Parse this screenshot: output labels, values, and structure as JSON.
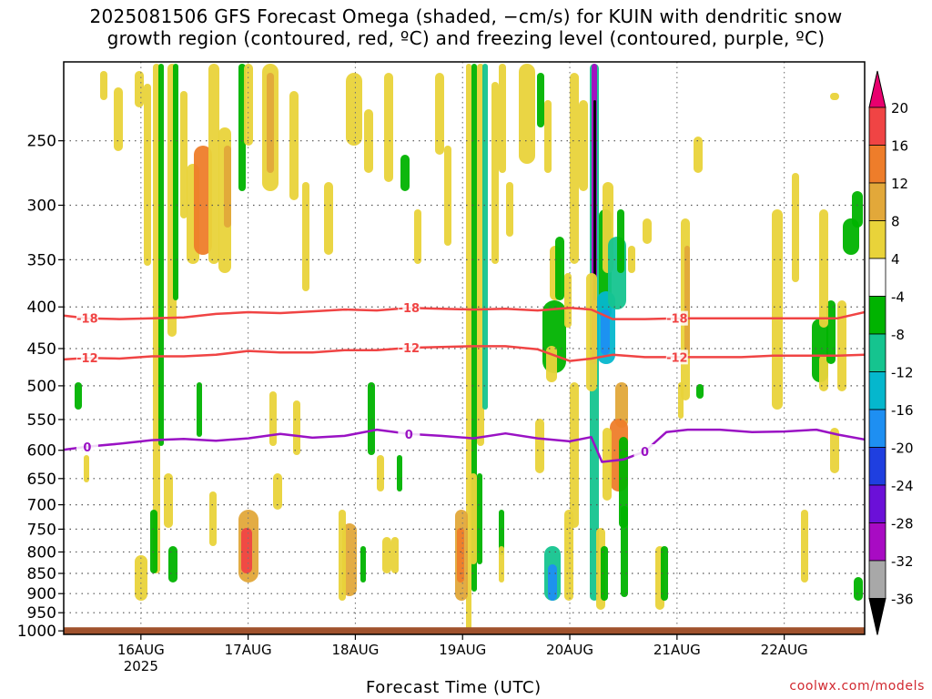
{
  "title": {
    "line1": "2025081506 GFS Forecast Omega (shaded, −cm/s) for KUIN with dendritic snow",
    "line2": "growth region (contoured, red, ºC) and freezing level (contoured, purple, ºC)"
  },
  "credit": "coolwx.com/models",
  "chart_data": {
    "type": "heatmap",
    "xlabel": "Forecast Time (UTC)",
    "ylabel": "",
    "x_ticks": [
      "16AUG",
      "17AUG",
      "18AUG",
      "19AUG",
      "20AUG",
      "21AUG",
      "22AUG"
    ],
    "x_year_label": "2025",
    "x_range_days": [
      15.28,
      22.75
    ],
    "y_scale": "log-pressure (hPa), inverted",
    "y_ticks": [
      250,
      300,
      350,
      400,
      450,
      500,
      550,
      600,
      650,
      700,
      750,
      800,
      850,
      900,
      950,
      1000
    ],
    "y_range": [
      200,
      1010
    ],
    "grid": true,
    "colorbar": {
      "levels": [
        20,
        16,
        12,
        8,
        4,
        -4,
        -8,
        -12,
        -16,
        -20,
        -24,
        -28,
        -32,
        -36
      ],
      "colors": [
        "#e8006e",
        "#f04444",
        "#ee7d2a",
        "#e2a83a",
        "#e9d33a",
        "#ffffff",
        "#00b300",
        "#15c48f",
        "#05b7cd",
        "#1e8ff2",
        "#1f3fe0",
        "#6b10d8",
        "#a80bc3",
        "#a8a8a8",
        "#000000"
      ]
    },
    "contours": [
      {
        "label": "-18",
        "color": "#f04444",
        "x": [
          15.28,
          15.5,
          15.8,
          16.1,
          16.4,
          16.7,
          17.0,
          17.3,
          17.6,
          17.9,
          18.2,
          18.5,
          18.8,
          19.1,
          19.4,
          19.7,
          20.0,
          20.2,
          20.4,
          20.7,
          21.0,
          21.3,
          21.6,
          21.9,
          22.2,
          22.5,
          22.75
        ],
        "y": [
          410,
          413,
          414,
          413,
          412,
          408,
          406,
          407,
          405,
          403,
          404,
          401,
          402,
          403,
          402,
          404,
          401,
          403,
          414,
          414,
          413,
          413,
          413,
          413,
          413,
          413,
          406
        ]
      },
      {
        "label": "-12",
        "color": "#f04444",
        "x": [
          15.28,
          15.5,
          15.8,
          16.1,
          16.4,
          16.7,
          17.0,
          17.3,
          17.6,
          17.9,
          18.2,
          18.5,
          18.8,
          19.1,
          19.4,
          19.7,
          20.0,
          20.2,
          20.4,
          20.7,
          21.0,
          21.3,
          21.6,
          21.9,
          22.2,
          22.5,
          22.75
        ],
        "y": [
          464,
          462,
          463,
          460,
          460,
          458,
          453,
          455,
          455,
          452,
          452,
          449,
          448,
          447,
          447,
          451,
          466,
          463,
          458,
          461,
          461,
          461,
          461,
          459,
          459,
          459,
          458
        ]
      },
      {
        "label": "0",
        "color": "#9a12c4",
        "x": [
          15.28,
          15.5,
          15.8,
          16.1,
          16.4,
          16.7,
          17.0,
          17.3,
          17.6,
          17.9,
          18.2,
          18.5,
          18.8,
          19.1,
          19.4,
          19.7,
          20.0,
          20.2,
          20.3,
          20.5,
          20.7,
          20.9,
          21.1,
          21.4,
          21.7,
          22.0,
          22.3,
          22.5,
          22.75
        ],
        "y": [
          599,
          594,
          589,
          583,
          581,
          584,
          580,
          573,
          579,
          576,
          566,
          573,
          576,
          580,
          572,
          580,
          585,
          578,
          620,
          616,
          602,
          570,
          566,
          566,
          570,
          569,
          566,
          574,
          582
        ]
      }
    ]
  }
}
